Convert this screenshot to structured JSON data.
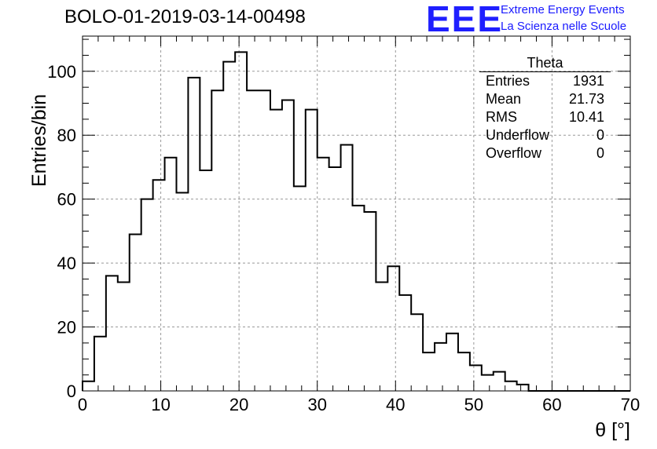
{
  "header": {
    "run_title": "BOLO-01-2019-03-14-00498",
    "logo": "EEE",
    "org_line1": "Extreme Energy Events",
    "org_line2": "La Scienza nelle Scuole"
  },
  "stats_box": {
    "title": "Theta",
    "rows": [
      {
        "label": "Entries",
        "value": "1931"
      },
      {
        "label": "Mean",
        "value": "21.73"
      },
      {
        "label": "RMS",
        "value": "10.41"
      },
      {
        "label": "Underflow",
        "value": "0"
      },
      {
        "label": "Overflow",
        "value": "0"
      }
    ]
  },
  "chart_data": {
    "type": "bar",
    "histogram": true,
    "xlabel": "θ [°]",
    "ylabel": "Entries/bin",
    "xlim": [
      0,
      70
    ],
    "ylim": [
      0,
      111
    ],
    "bin_width": 1.5,
    "bin_edges_start": 0,
    "x_ticks": [
      "0",
      "10",
      "20",
      "30",
      "40",
      "50",
      "60",
      "70"
    ],
    "y_ticks": [
      "0",
      "20",
      "40",
      "60",
      "80",
      "100"
    ],
    "values": [
      3,
      17,
      36,
      34,
      49,
      60,
      66,
      73,
      62,
      98,
      69,
      94,
      103,
      106,
      94,
      94,
      88,
      91,
      64,
      88,
      73,
      70,
      77,
      58,
      56,
      34,
      39,
      30,
      24,
      12,
      15,
      18,
      12,
      8,
      5,
      6,
      3,
      2,
      0,
      0,
      0,
      0,
      0,
      0,
      0,
      0,
      0
    ],
    "grid": true,
    "line_color": "#000000",
    "grid_color": "#999999"
  }
}
